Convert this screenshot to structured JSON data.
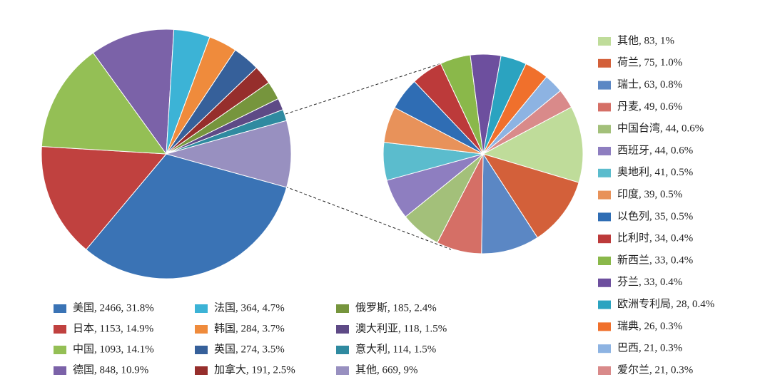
{
  "chart_data": [
    {
      "type": "pie",
      "labels": [
        "美国, 2466, 31.8%",
        "日本, 1153, 14.9%",
        "中国, 1093, 14.1%",
        "德国, 848, 10.9%",
        "法国, 364, 4.7%",
        "韩国, 284, 3.7%",
        "英国, 274, 3.5%",
        "加拿大, 191, 2.5%",
        "俄罗斯, 185, 2.4%",
        "澳大利亚, 118, 1.5%",
        "意大利, 114, 1.5%",
        "其他, 669, 9%"
      ],
      "values": [
        2466,
        1153,
        1093,
        848,
        364,
        284,
        274,
        191,
        185,
        118,
        114,
        669
      ],
      "colors": [
        "#3a73b5",
        "#c0413f",
        "#94bf55",
        "#7b62a8",
        "#3cb3d6",
        "#ef8b3c",
        "#36609a",
        "#962e2c",
        "#76953d",
        "#5e4a86",
        "#2f8aa0",
        "#9890c0"
      ]
    },
    {
      "type": "pie",
      "labels": [
        "其他, 83, 1%",
        "荷兰, 75, 1.0%",
        "瑞士, 63, 0.8%",
        "丹麦, 49, 0.6%",
        "中国台湾, 44, 0.6%",
        "西班牙, 44, 0.6%",
        "奥地利, 41, 0.5%",
        "印度, 39, 0.5%",
        "以色列, 35, 0.5%",
        "比利时, 34, 0.4%",
        "新西兰, 33, 0.4%",
        "芬兰, 33, 0.4%",
        "欧洲专利局, 28, 0.4%",
        "瑞典, 26, 0.3%",
        "巴西, 21, 0.3%",
        "爱尔兰, 21, 0.3%"
      ],
      "values": [
        83,
        75,
        63,
        49,
        44,
        44,
        41,
        39,
        35,
        34,
        33,
        33,
        28,
        26,
        21,
        21
      ],
      "colors": [
        "#bfdc9a",
        "#d3603a",
        "#5b87c4",
        "#d56f66",
        "#a3c07a",
        "#8e7ec0",
        "#5bbccd",
        "#e8925a",
        "#2f6db4",
        "#bc3a3a",
        "#8ab84a",
        "#6d4f9e",
        "#2ba3c0",
        "#f0702c",
        "#8db3e2",
        "#d98a8a"
      ]
    }
  ]
}
